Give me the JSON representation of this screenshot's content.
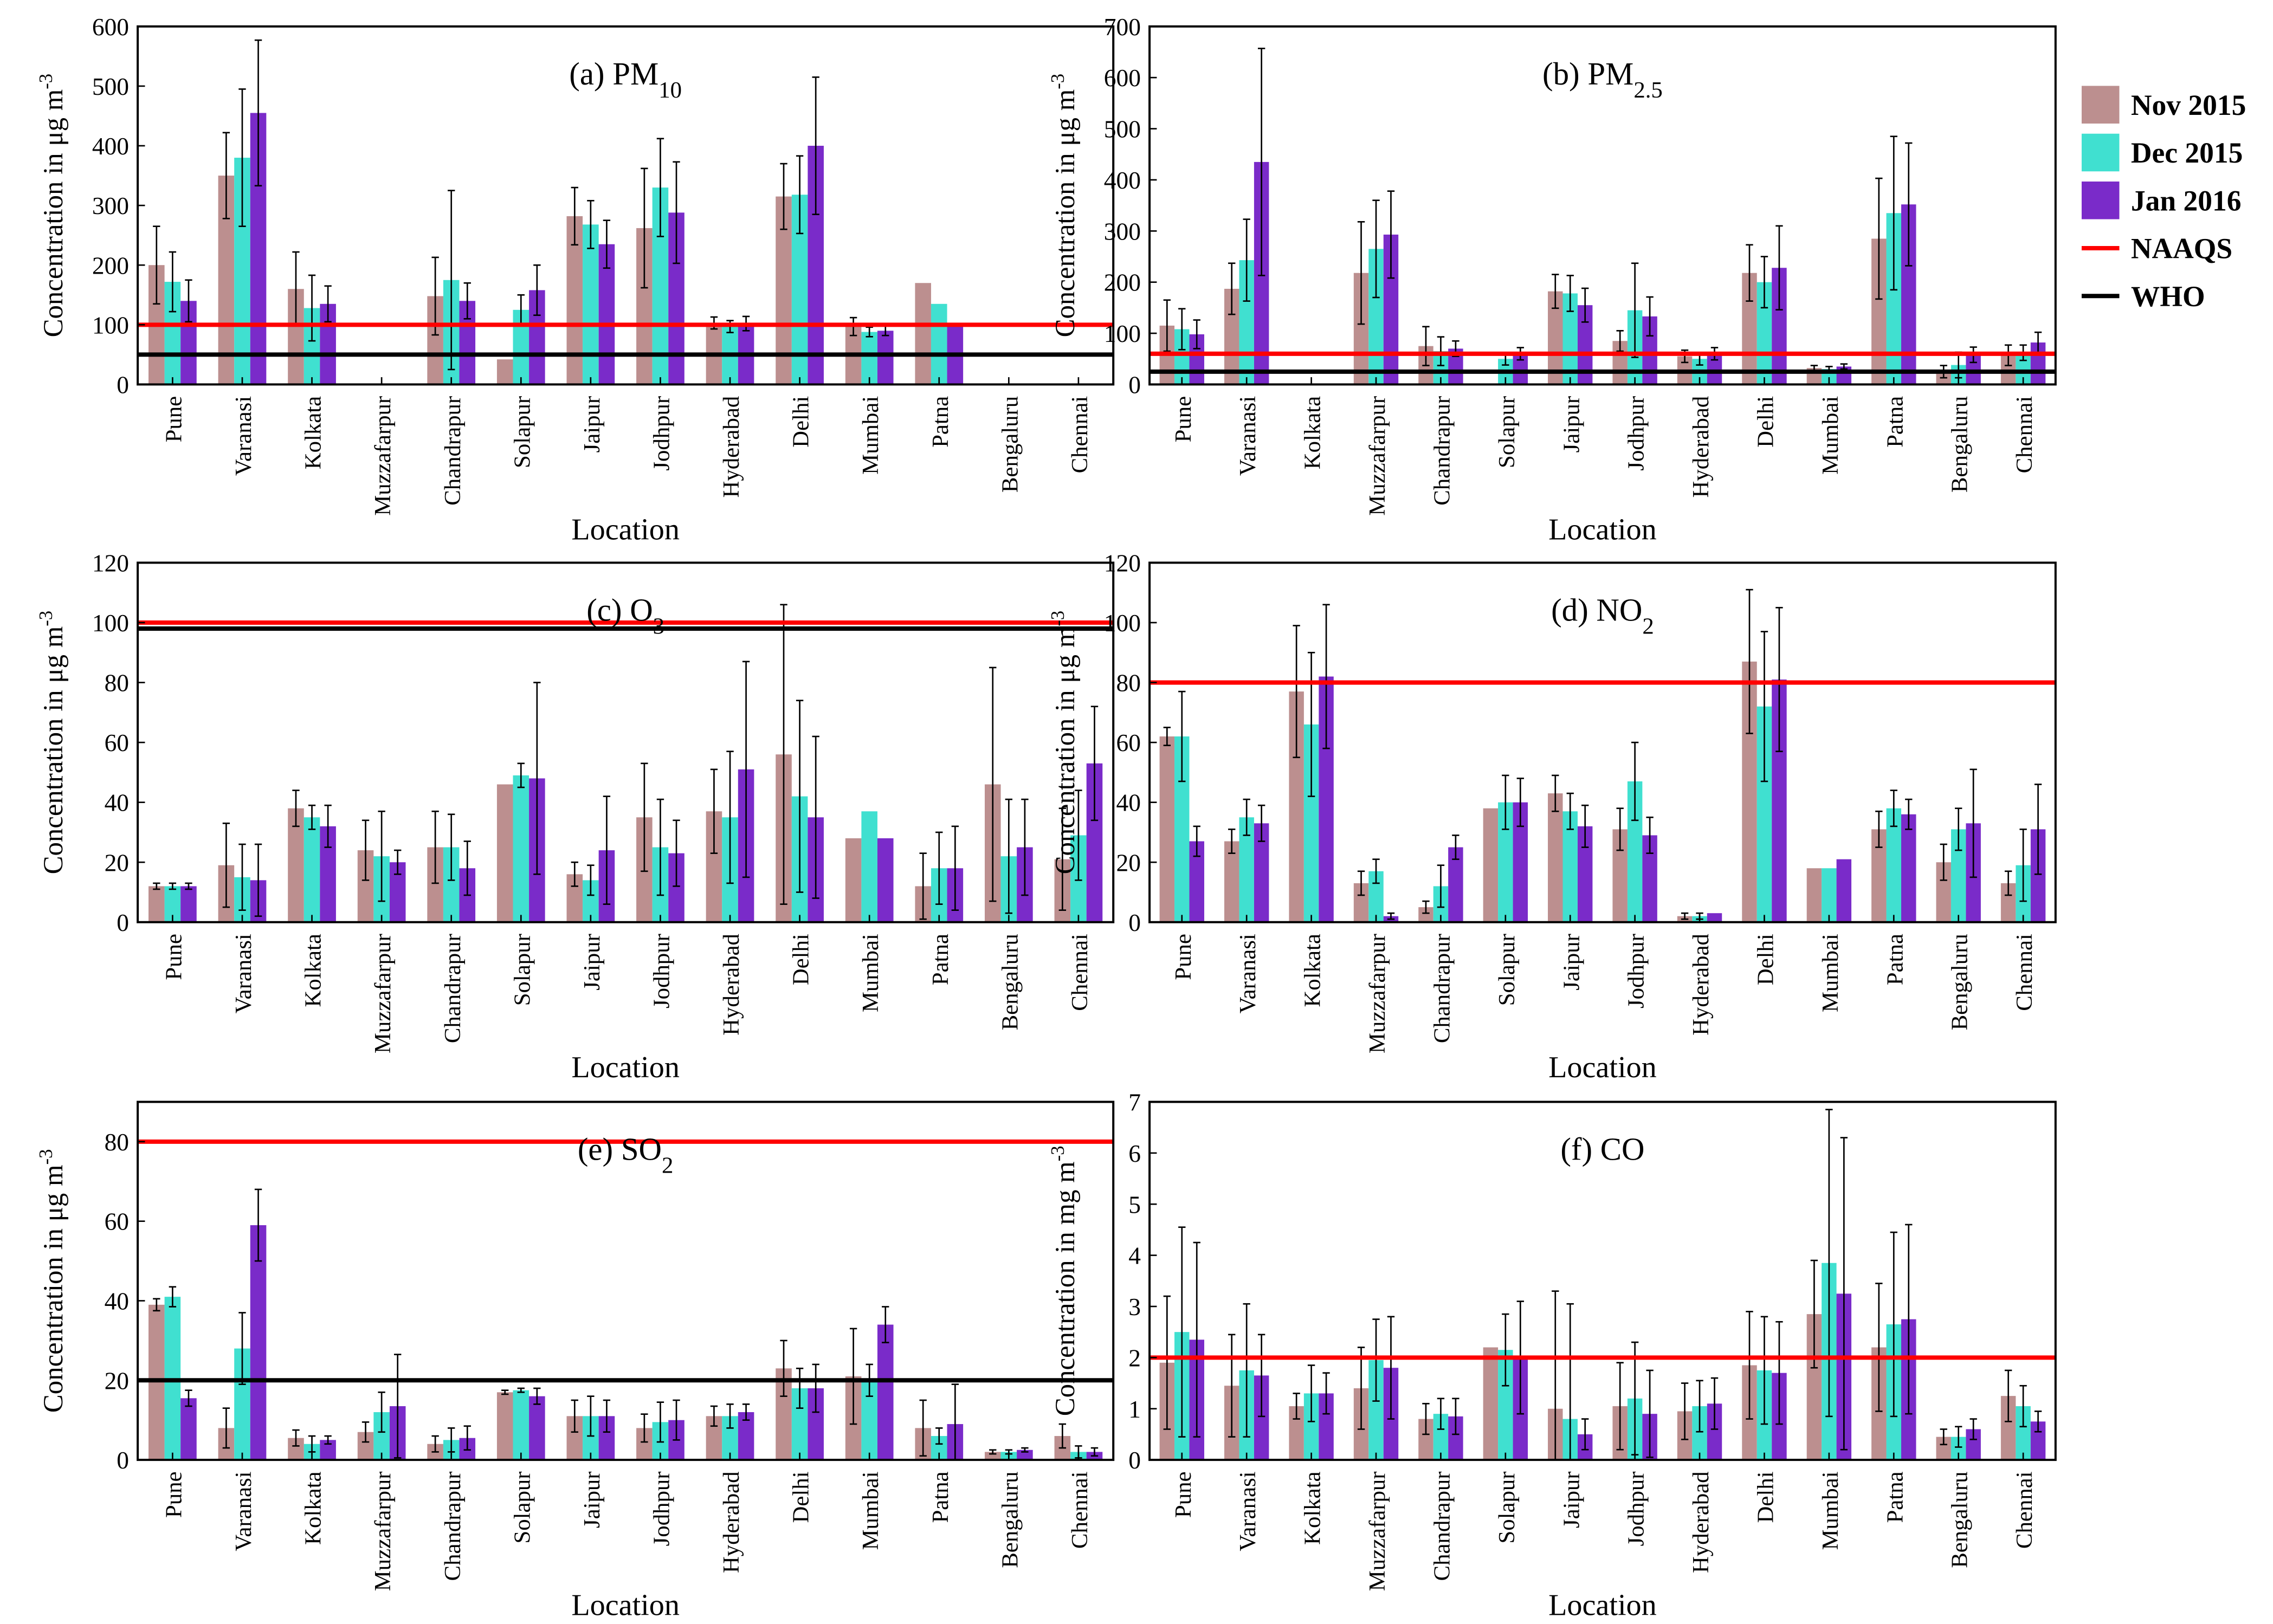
{
  "legend": {
    "entries": [
      {
        "label": "Nov 2015",
        "color": "#BC8F8F",
        "kind": "bar"
      },
      {
        "label": "Dec 2015",
        "color": "#40E0D0",
        "kind": "bar"
      },
      {
        "label": "Jan 2016",
        "color": "#7A2BC9",
        "kind": "bar"
      },
      {
        "label": "NAAQS",
        "color": "#FF0000",
        "kind": "line"
      },
      {
        "label": "WHO",
        "color": "#000000",
        "kind": "line"
      }
    ]
  },
  "chart_data": [
    {
      "type": "bar",
      "title": "(a) PM",
      "title_sub": "10",
      "xlabel": "Location",
      "ylabel": "Concentration in μg m",
      "ylabel_sup": "-3",
      "ylim": [
        0,
        600
      ],
      "yticks": [
        0,
        100,
        200,
        300,
        400,
        500,
        600
      ],
      "categories": [
        "Pune",
        "Varanasi",
        "Kolkata",
        "Muzzafarpur",
        "Chandrapur",
        "Solapur",
        "Jaipur",
        "Jodhpur",
        "Hyderabad",
        "Delhi",
        "Mumbai",
        "Patna",
        "Bengaluru",
        "Chennai"
      ],
      "series": [
        {
          "name": "Nov 2015",
          "values": [
            200,
            350,
            160,
            0,
            148,
            42,
            282,
            262,
            103,
            315,
            97,
            170,
            0,
            0
          ],
          "errors": [
            65,
            72,
            62,
            0,
            65,
            0,
            48,
            100,
            10,
            55,
            15,
            0,
            0,
            0
          ]
        },
        {
          "name": "Dec 2015",
          "values": [
            172,
            380,
            128,
            0,
            175,
            125,
            268,
            330,
            97,
            318,
            88,
            135,
            0,
            0
          ],
          "errors": [
            50,
            115,
            55,
            0,
            150,
            25,
            40,
            82,
            10,
            65,
            8,
            0,
            0,
            0
          ]
        },
        {
          "name": "Jan 2016",
          "values": [
            140,
            455,
            135,
            0,
            140,
            158,
            235,
            288,
            102,
            400,
            90,
            100,
            0,
            0
          ],
          "errors": [
            35,
            122,
            30,
            0,
            30,
            42,
            40,
            85,
            12,
            115,
            8,
            0,
            0,
            0
          ]
        }
      ],
      "naaqs": 100,
      "who": 50
    },
    {
      "type": "bar",
      "title": "(b) PM",
      "title_sub": "2.5",
      "xlabel": "Location",
      "ylabel": "Concentration in μg m",
      "ylabel_sup": "-3",
      "ylim": [
        0,
        700
      ],
      "yticks": [
        0,
        100,
        200,
        300,
        400,
        500,
        600,
        700
      ],
      "categories": [
        "Pune",
        "Varanasi",
        "Kolkata",
        "Muzzafarpur",
        "Chandrapur",
        "Solapur",
        "Jaipur",
        "Jodhpur",
        "Hyderabad",
        "Delhi",
        "Mumbai",
        "Patna",
        "Bengaluru",
        "Chennai"
      ],
      "series": [
        {
          "name": "Nov 2015",
          "values": [
            115,
            187,
            0,
            218,
            75,
            0,
            182,
            85,
            55,
            218,
            32,
            285,
            25,
            57
          ],
          "errors": [
            50,
            50,
            0,
            100,
            38,
            0,
            33,
            20,
            12,
            55,
            5,
            118,
            12,
            20
          ]
        },
        {
          "name": "Dec 2015",
          "values": [
            108,
            243,
            0,
            265,
            65,
            50,
            178,
            145,
            50,
            200,
            30,
            335,
            38,
            62
          ],
          "errors": [
            40,
            80,
            0,
            95,
            28,
            12,
            35,
            92,
            12,
            50,
            5,
            150,
            25,
            15
          ]
        },
        {
          "name": "Jan 2016",
          "values": [
            98,
            435,
            0,
            293,
            70,
            60,
            155,
            133,
            60,
            228,
            35,
            352,
            58,
            82
          ],
          "errors": [
            28,
            222,
            0,
            85,
            15,
            12,
            33,
            38,
            12,
            82,
            5,
            120,
            15,
            20
          ]
        }
      ],
      "naaqs": 60,
      "who": 25
    },
    {
      "type": "bar",
      "title": "(c) O",
      "title_sub": "3",
      "xlabel": "Location",
      "ylabel": "Concentration in μg m",
      "ylabel_sup": "-3",
      "ylim": [
        0,
        120
      ],
      "yticks": [
        0,
        20,
        40,
        60,
        80,
        100,
        120
      ],
      "categories": [
        "Pune",
        "Varanasi",
        "Kolkata",
        "Muzzafarpur",
        "Chandrapur",
        "Solapur",
        "Jaipur",
        "Jodhpur",
        "Hyderabad",
        "Delhi",
        "Mumbai",
        "Patna",
        "Bengaluru",
        "Chennai"
      ],
      "series": [
        {
          "name": "Nov 2015",
          "values": [
            12,
            19,
            38,
            24,
            25,
            46,
            16,
            35,
            37,
            56,
            28,
            12,
            46,
            21
          ],
          "errors": [
            1,
            14,
            6,
            10,
            12,
            0,
            4,
            18,
            14,
            50,
            0,
            11,
            39,
            17
          ]
        },
        {
          "name": "Dec 2015",
          "values": [
            12,
            15,
            35,
            22,
            25,
            49,
            14,
            25,
            35,
            42,
            37,
            18,
            22,
            29
          ],
          "errors": [
            1,
            11,
            4,
            15,
            11,
            4,
            5,
            16,
            22,
            32,
            0,
            12,
            19,
            15
          ]
        },
        {
          "name": "Jan 2016",
          "values": [
            12,
            14,
            32,
            20,
            18,
            48,
            24,
            23,
            51,
            35,
            28,
            18,
            25,
            53
          ],
          "errors": [
            1,
            12,
            7,
            4,
            9,
            32,
            18,
            11,
            36,
            27,
            0,
            14,
            16,
            19
          ]
        }
      ],
      "naaqs": 100,
      "who": 98
    },
    {
      "type": "bar",
      "title": "(d) NO",
      "title_sub": "2",
      "xlabel": "Location",
      "ylabel": "Concentration in μg m",
      "ylabel_sup": "-3",
      "ylim": [
        0,
        120
      ],
      "yticks": [
        0,
        20,
        40,
        60,
        80,
        100,
        120
      ],
      "categories": [
        "Pune",
        "Varanasi",
        "Kolkata",
        "Muzzafarpur",
        "Chandrapur",
        "Solapur",
        "Jaipur",
        "Jodhpur",
        "Hyderabad",
        "Delhi",
        "Mumbai",
        "Patna",
        "Bengaluru",
        "Chennai"
      ],
      "series": [
        {
          "name": "Nov 2015",
          "values": [
            62,
            27,
            77,
            13,
            5,
            38,
            43,
            31,
            2,
            87,
            18,
            31,
            20,
            13
          ],
          "errors": [
            3,
            4,
            22,
            4,
            2,
            0,
            6,
            7,
            1,
            24,
            0,
            6,
            6,
            4
          ]
        },
        {
          "name": "Dec 2015",
          "values": [
            62,
            35,
            66,
            17,
            12,
            40,
            37,
            47,
            2,
            72,
            18,
            38,
            31,
            19
          ],
          "errors": [
            15,
            6,
            24,
            4,
            7,
            9,
            6,
            13,
            1,
            25,
            0,
            6,
            7,
            12
          ]
        },
        {
          "name": "Jan 2016",
          "values": [
            27,
            33,
            82,
            2,
            25,
            40,
            32,
            29,
            3,
            81,
            21,
            36,
            33,
            31
          ],
          "errors": [
            5,
            6,
            24,
            1,
            4,
            8,
            7,
            6,
            0,
            24,
            0,
            5,
            18,
            15
          ]
        }
      ],
      "naaqs": 80,
      "who": null
    },
    {
      "type": "bar",
      "title": "(e) SO",
      "title_sub": "2",
      "xlabel": "Location",
      "ylabel": "Concentration in μg m",
      "ylabel_sup": "-3",
      "ylim": [
        0,
        90
      ],
      "yticks": [
        0,
        20,
        40,
        60,
        80
      ],
      "categories": [
        "Pune",
        "Varanasi",
        "Kolkata",
        "Muzzafarpur",
        "Chandrapur",
        "Solapur",
        "Jaipur",
        "Jodhpur",
        "Hyderabad",
        "Delhi",
        "Mumbai",
        "Patna",
        "Bengaluru",
        "Chennai"
      ],
      "series": [
        {
          "name": "Nov 2015",
          "values": [
            39,
            8,
            5.5,
            7,
            4,
            17,
            11,
            8,
            11,
            23,
            21,
            8,
            2,
            6
          ],
          "errors": [
            1.5,
            5,
            2,
            2.5,
            2,
            0.5,
            4,
            3.5,
            2.5,
            7,
            12,
            7,
            0.5,
            3
          ]
        },
        {
          "name": "Dec 2015",
          "values": [
            41,
            28,
            4,
            12,
            5,
            17.5,
            11,
            9.5,
            11,
            18,
            20,
            6,
            2,
            2
          ],
          "errors": [
            2.5,
            9,
            2,
            5,
            3,
            0.5,
            5,
            5,
            3,
            5,
            4,
            2,
            0.5,
            1.5
          ]
        },
        {
          "name": "Jan 2016",
          "values": [
            15.5,
            59,
            5,
            13.5,
            5.5,
            16,
            11,
            10,
            12,
            18,
            34,
            9,
            2.5,
            2
          ],
          "errors": [
            2,
            9,
            1,
            13,
            3,
            2,
            4,
            5,
            2,
            6,
            4.5,
            10,
            0.5,
            1
          ]
        }
      ],
      "naaqs": 80,
      "who": 20
    },
    {
      "type": "bar",
      "title": "(f) CO",
      "title_sub": "",
      "xlabel": "Location",
      "ylabel": "Concentration in mg m",
      "ylabel_sup": "-3",
      "ylim": [
        0,
        7
      ],
      "yticks": [
        0,
        1,
        2,
        3,
        4,
        5,
        6,
        7
      ],
      "categories": [
        "Pune",
        "Varanasi",
        "Kolkata",
        "Muzzafarpur",
        "Chandrapur",
        "Solapur",
        "Jaipur",
        "Jodhpur",
        "Hyderabad",
        "Delhi",
        "Mumbai",
        "Patna",
        "Bengaluru",
        "Chennai"
      ],
      "series": [
        {
          "name": "Nov 2015",
          "values": [
            1.9,
            1.45,
            1.05,
            1.4,
            0.8,
            2.2,
            1.0,
            1.05,
            0.95,
            1.85,
            2.85,
            2.2,
            0.45,
            1.25
          ],
          "errors": [
            1.3,
            1.0,
            0.25,
            0.8,
            0.3,
            0,
            2.3,
            0.85,
            0.55,
            1.05,
            1.05,
            1.25,
            0.15,
            0.5
          ]
        },
        {
          "name": "Dec 2015",
          "values": [
            2.5,
            1.75,
            1.3,
            1.95,
            0.9,
            2.15,
            0.8,
            1.2,
            1.05,
            1.75,
            3.85,
            2.65,
            0.45,
            1.05
          ],
          "errors": [
            2.05,
            1.3,
            0.55,
            0.8,
            0.3,
            0.7,
            2.25,
            1.1,
            0.5,
            1.05,
            3.0,
            1.8,
            0.2,
            0.4
          ]
        },
        {
          "name": "Jan 2016",
          "values": [
            2.35,
            1.65,
            1.3,
            1.8,
            0.85,
            2.0,
            0.5,
            0.9,
            1.1,
            1.7,
            3.25,
            2.75,
            0.6,
            0.75
          ],
          "errors": [
            1.9,
            0.8,
            0.4,
            1.0,
            0.35,
            1.1,
            0.3,
            0.85,
            0.5,
            1.0,
            3.05,
            1.85,
            0.2,
            0.2
          ]
        }
      ],
      "naaqs": 2,
      "who": null
    }
  ]
}
